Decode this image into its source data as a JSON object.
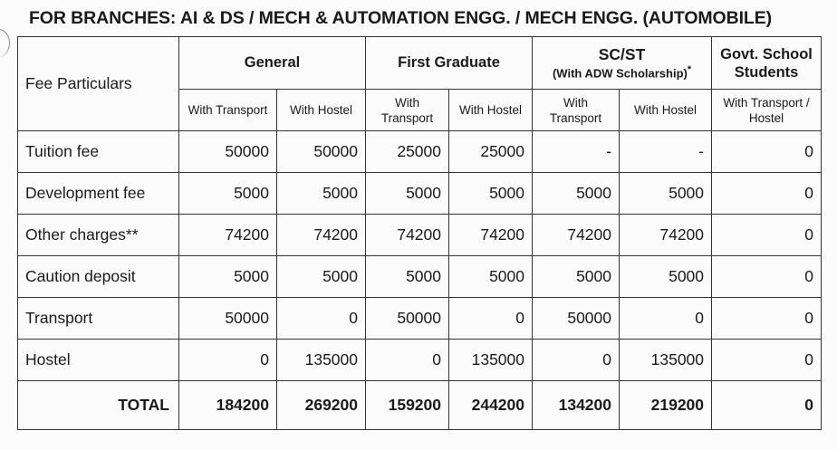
{
  "title": "FOR BRANCHES: AI & DS / MECH & AUTOMATION ENGG. / MECH ENGG. (AUTOMOBILE)",
  "header": {
    "fee_particulars": "Fee Particulars",
    "general": "General",
    "first_graduate": "First Graduate",
    "scst": "SC/ST",
    "scst_note": "(With ADW Scholarship)",
    "scst_star": "*",
    "govt": "Govt. School Students",
    "sub": [
      "With Transport",
      "With Hostel",
      "With Transport",
      "With Hostel",
      "With Transport",
      "With Hostel",
      "With Transport / Hostel"
    ]
  },
  "rows": [
    {
      "label": "Tuition fee",
      "values": [
        "50000",
        "50000",
        "25000",
        "25000",
        "-",
        "-",
        "0"
      ]
    },
    {
      "label": "Development fee",
      "values": [
        "5000",
        "5000",
        "5000",
        "5000",
        "5000",
        "5000",
        "0"
      ]
    },
    {
      "label": "Other charges**",
      "values": [
        "74200",
        "74200",
        "74200",
        "74200",
        "74200",
        "74200",
        "0"
      ]
    },
    {
      "label": "Caution deposit",
      "values": [
        "5000",
        "5000",
        "5000",
        "5000",
        "5000",
        "5000",
        "0"
      ]
    },
    {
      "label": "Transport",
      "values": [
        "50000",
        "0",
        "50000",
        "0",
        "50000",
        "0",
        "0"
      ]
    },
    {
      "label": "Hostel",
      "values": [
        "0",
        "135000",
        "0",
        "135000",
        "0",
        "135000",
        "0"
      ]
    }
  ],
  "total": {
    "label": "TOTAL",
    "values": [
      "184200",
      "269200",
      "159200",
      "244200",
      "134200",
      "219200",
      "0"
    ]
  }
}
